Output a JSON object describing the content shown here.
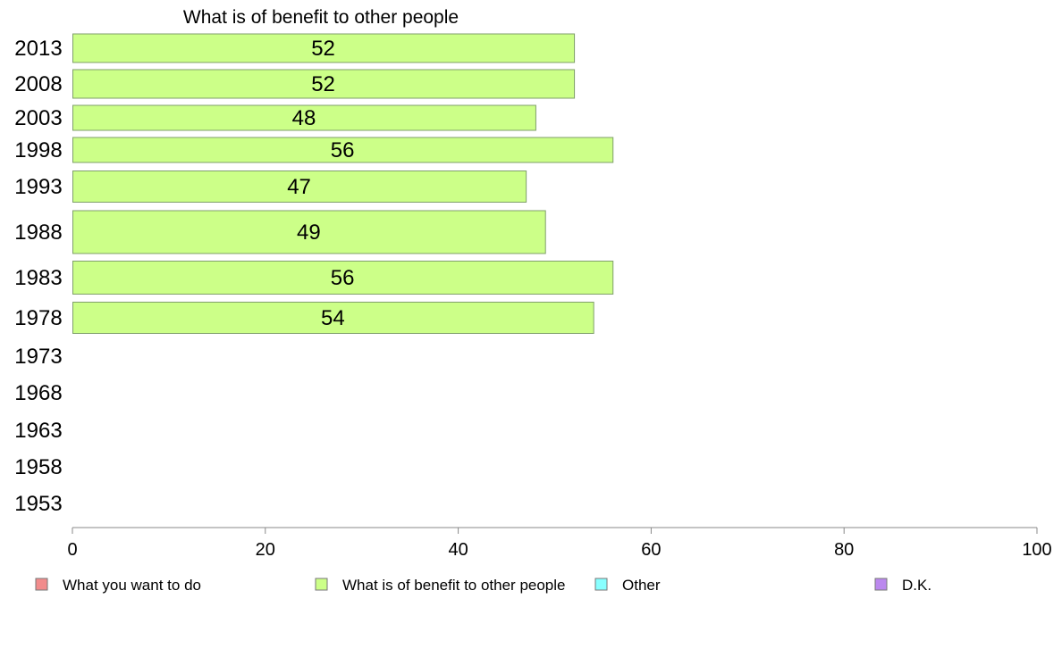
{
  "chart_data": {
    "type": "bar",
    "orientation": "horizontal",
    "title": "What is of benefit to other people",
    "categories": [
      "2013",
      "2008",
      "2003",
      "1998",
      "1993",
      "1988",
      "1983",
      "1978",
      "1973",
      "1968",
      "1963",
      "1958",
      "1953"
    ],
    "series": [
      {
        "name": "What is of benefit to other people",
        "color": "#ccff88",
        "values": [
          52,
          52,
          48,
          56,
          47,
          49,
          56,
          54,
          null,
          null,
          null,
          null,
          null
        ]
      }
    ],
    "xlim": [
      0,
      100
    ],
    "xticks": [
      "0",
      "20",
      "40",
      "60",
      "80",
      "100"
    ],
    "grid": false,
    "legend": {
      "position": "bottom",
      "entries": [
        {
          "label": "What you want to do",
          "color": "#f28c8c"
        },
        {
          "label": "What is of benefit to other people",
          "color": "#ccff88"
        },
        {
          "label": "Other",
          "color": "#88ffff"
        },
        {
          "label": "D.K.",
          "color": "#bb88ee"
        }
      ]
    }
  }
}
